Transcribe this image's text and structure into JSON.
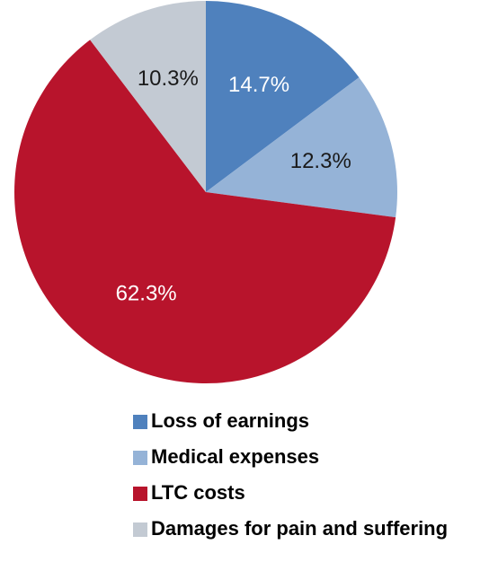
{
  "chart_data": {
    "type": "pie",
    "categories": [
      "Loss of earnings",
      "Medical expenses",
      "LTC costs",
      "Damages for pain and suffering"
    ],
    "values": [
      14.7,
      12.3,
      62.3,
      10.3
    ],
    "value_labels": [
      "14.7%",
      "12.3%",
      "62.3%",
      "10.3%"
    ],
    "colors": [
      "#4f81bd",
      "#95b3d7",
      "#b8142c",
      "#c3cad3"
    ]
  }
}
